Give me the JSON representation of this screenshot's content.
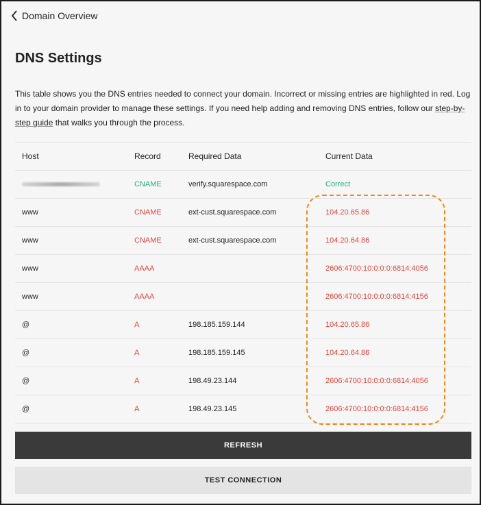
{
  "nav": {
    "back_label": "Domain Overview"
  },
  "page": {
    "title": "DNS Settings",
    "description": "This table shows you the DNS entries needed to connect your domain. Incorrect or missing entries are highlighted in red. Log in to your domain provider to manage these settings. If you need help adding and removing DNS entries, follow our ",
    "link_text": "step-by-step guide",
    "description_end": " that walks you through the process."
  },
  "table": {
    "headers": [
      "Host",
      "Record",
      "Required Data",
      "Current Data"
    ],
    "rows": [
      {
        "host": "",
        "host_redacted": true,
        "record": "CNAME",
        "required": "verify.squarespace.com",
        "current": "Correct",
        "status": "ok"
      },
      {
        "host": "www",
        "record": "CNAME",
        "required": "ext-cust.squarespace.com",
        "current": "104.20.65.86",
        "status": "bad"
      },
      {
        "host": "www",
        "record": "CNAME",
        "required": "ext-cust.squarespace.com",
        "current": "104.20.64.86",
        "status": "bad"
      },
      {
        "host": "www",
        "record": "AAAA",
        "required": "",
        "current": "2606:4700:10:0:0:0:6814:4056",
        "status": "bad"
      },
      {
        "host": "www",
        "record": "AAAA",
        "required": "",
        "current": "2606:4700:10:0:0:0:6814:4156",
        "status": "bad"
      },
      {
        "host": "@",
        "record": "A",
        "required": "198.185.159.144",
        "current": "104.20.65.86",
        "status": "bad"
      },
      {
        "host": "@",
        "record": "A",
        "required": "198.185.159.145",
        "current": "104.20.64.86",
        "status": "bad"
      },
      {
        "host": "@",
        "record": "A",
        "required": "198.49.23.144",
        "current": "2606:4700:10:0:0:0:6814:4056",
        "status": "bad"
      },
      {
        "host": "@",
        "record": "A",
        "required": "198.49.23.145",
        "current": "2606:4700:10:0:0:0:6814:4156",
        "status": "bad"
      }
    ]
  },
  "colors": {
    "ok": "#22b07d",
    "bad": "#e2453c",
    "highlight": "#f08a1c"
  },
  "buttons": {
    "refresh": "REFRESH",
    "test": "TEST CONNECTION"
  }
}
